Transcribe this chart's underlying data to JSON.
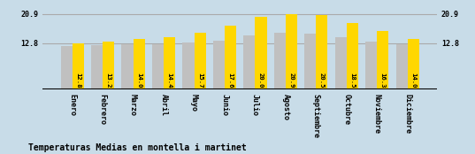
{
  "months": [
    "Enero",
    "Febrero",
    "Marzo",
    "Abril",
    "Mayo",
    "Junio",
    "Julio",
    "Agosto",
    "Septiembre",
    "Octubre",
    "Noviembre",
    "Diciembre"
  ],
  "values": [
    12.8,
    13.2,
    14.0,
    14.4,
    15.7,
    17.6,
    20.0,
    20.9,
    20.5,
    18.5,
    16.3,
    14.0
  ],
  "gray_values": [
    12.1,
    12.3,
    12.6,
    12.6,
    12.9,
    13.5,
    15.0,
    15.8,
    15.5,
    14.5,
    13.2,
    12.6
  ],
  "bar_color_yellow": "#FFD700",
  "bar_color_gray": "#C0C0C0",
  "background_color": "#C8DCE8",
  "yticks": [
    12.8,
    20.9
  ],
  "ylim_min": 0.0,
  "ylim_max": 23.5,
  "y_axis_min_display": 12.8,
  "y_axis_max_display": 20.9,
  "title": "Temperaturas Medias en montella i martinet",
  "title_fontsize": 7.0,
  "value_fontsize": 5.2,
  "axis_fontsize": 6.0,
  "hline_color": "#AAAAAA",
  "bar_width": 0.38,
  "axhline_y": 0.0
}
